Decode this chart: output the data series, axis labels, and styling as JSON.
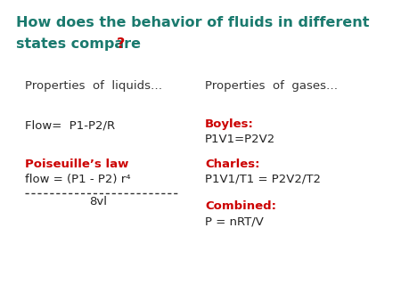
{
  "background_color": "#ffffff",
  "title_line1": "How does the behavior of fluids in different",
  "title_line2": "states compare",
  "title_question_mark": "?",
  "title_color": "#1a7a6e",
  "title_qmark_color": "#cc0000",
  "title_fontsize": 11.5,
  "title_bold": true,
  "col1_header": "Properties  of  liquids…",
  "col2_header": "Properties  of  gases…",
  "header_color": "#333333",
  "header_fontsize": 9.5,
  "flow_simple_text": "Flow=  P1-P2/R",
  "flow_simple_color": "#222222",
  "flow_simple_fontsize": 9.5,
  "poiseuille_label": "Poiseuille’s law",
  "poiseuille_label_color": "#cc0000",
  "poiseuille_label_fontsize": 9.5,
  "poiseuille_numerator": "flow = (P1 - P2) r⁴",
  "poiseuille_numerator_color": "#222222",
  "poiseuille_numerator_fontsize": 9.5,
  "poiseuille_denominator": "8vl",
  "poiseuille_denominator_color": "#222222",
  "poiseuille_denominator_fontsize": 9.5,
  "boyles_label": "Boyles:",
  "boyles_label_color": "#cc0000",
  "boyles_eq": "P1V1=P2V2",
  "boyles_eq_color": "#222222",
  "boyles_fontsize": 9.5,
  "charles_label": "Charles:",
  "charles_label_color": "#cc0000",
  "charles_eq": "P1V1/T1 = P2V2/T2",
  "charles_eq_color": "#222222",
  "charles_fontsize": 9.5,
  "combined_label": "Combined:",
  "combined_label_color": "#cc0000",
  "combined_eq": "P = nRT/V",
  "combined_eq_color": "#222222",
  "combined_fontsize": 9.5
}
